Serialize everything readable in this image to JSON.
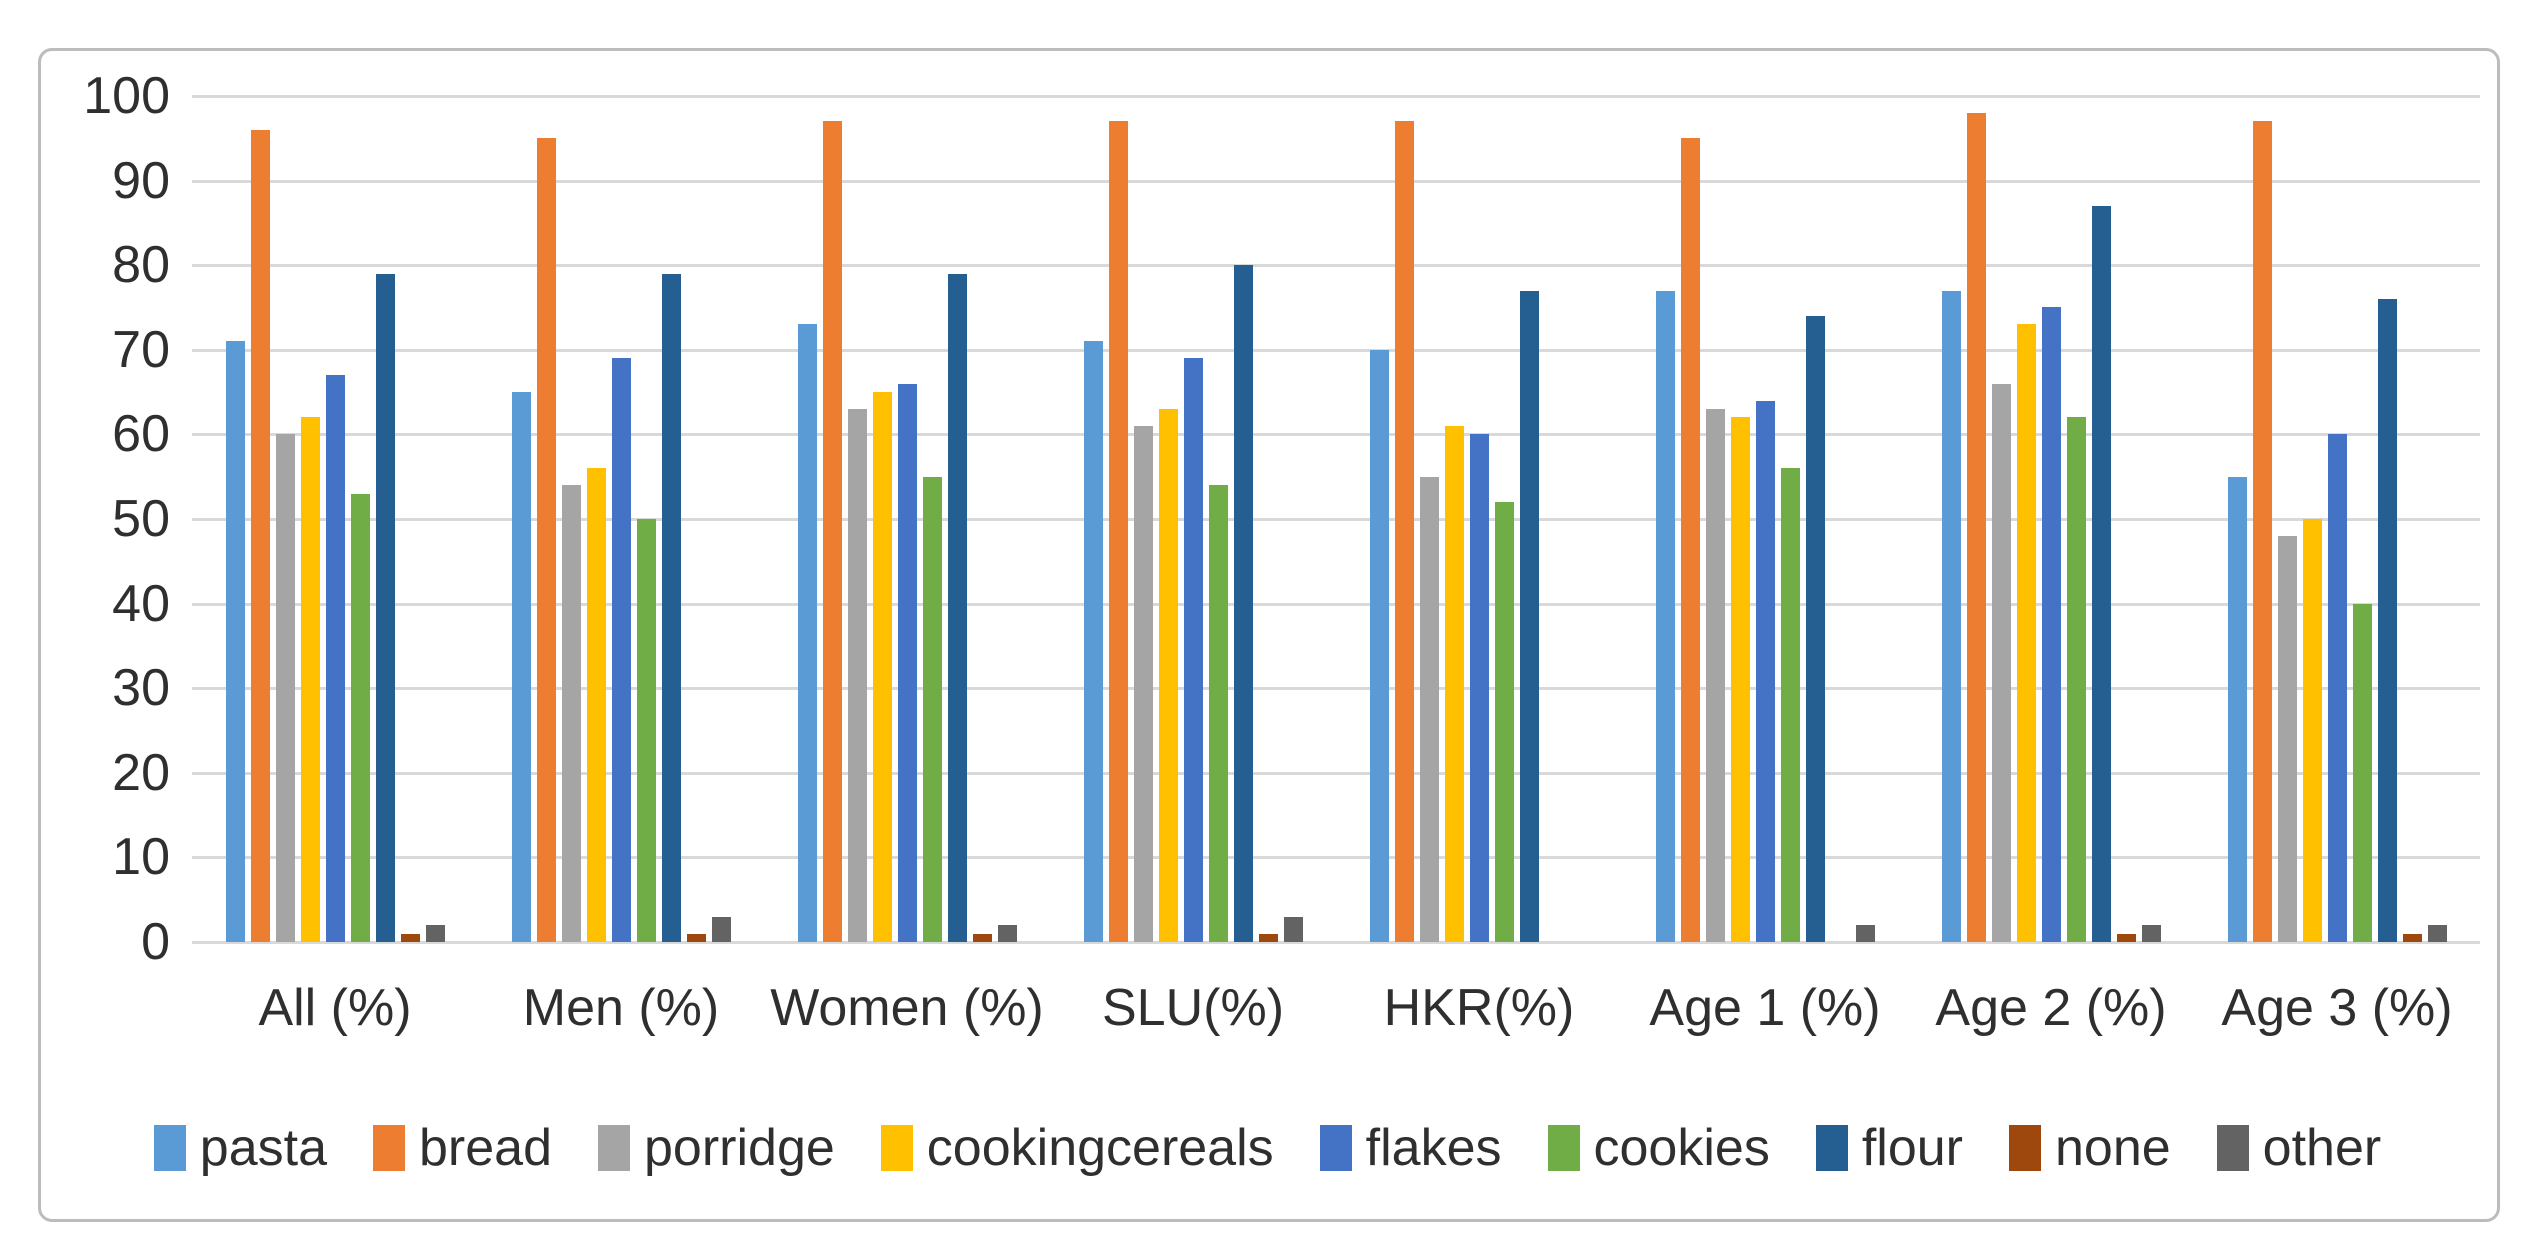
{
  "chart_data": {
    "type": "bar",
    "title": "",
    "xlabel": "",
    "ylabel": "",
    "ylim": [
      0,
      100
    ],
    "y_ticks": [
      0,
      10,
      20,
      30,
      40,
      50,
      60,
      70,
      80,
      90,
      100
    ],
    "grid": "horizontal",
    "gridline_color": "#D9D9D9",
    "legend_position": "bottom",
    "categories": [
      "All (%)",
      "Men (%)",
      "Women (%)",
      "SLU(%)",
      "HKR(%)",
      "Age 1 (%)",
      "Age 2 (%)",
      "Age 3 (%)"
    ],
    "series": [
      {
        "name": "pasta",
        "color": "#5B9BD5",
        "values": [
          71,
          65,
          73,
          71,
          70,
          77,
          77,
          55
        ]
      },
      {
        "name": "bread",
        "color": "#ED7D31",
        "values": [
          96,
          95,
          97,
          97,
          97,
          95,
          98,
          97
        ]
      },
      {
        "name": "porridge",
        "color": "#A5A5A5",
        "values": [
          60,
          54,
          63,
          61,
          55,
          63,
          66,
          48
        ]
      },
      {
        "name": "cookingcereals",
        "color": "#FFC000",
        "values": [
          62,
          56,
          65,
          63,
          61,
          62,
          73,
          50
        ]
      },
      {
        "name": "flakes",
        "color": "#4472C4",
        "values": [
          67,
          69,
          66,
          69,
          60,
          64,
          75,
          60
        ]
      },
      {
        "name": "cookies",
        "color": "#70AD47",
        "values": [
          53,
          50,
          55,
          54,
          52,
          56,
          62,
          40
        ]
      },
      {
        "name": "flour",
        "color": "#255E91",
        "values": [
          79,
          79,
          79,
          80,
          77,
          74,
          87,
          76
        ]
      },
      {
        "name": "none",
        "color": "#9E480E",
        "values": [
          1,
          1,
          1,
          1,
          0,
          0,
          1,
          1
        ]
      },
      {
        "name": "other",
        "color": "#636363",
        "values": [
          2,
          3,
          2,
          3,
          0,
          2,
          2,
          2
        ]
      }
    ]
  }
}
